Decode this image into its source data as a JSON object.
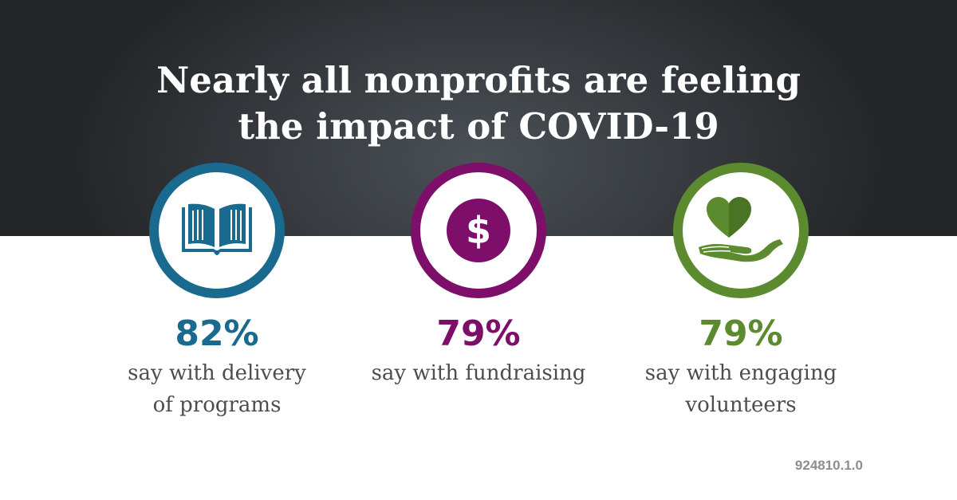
{
  "header": {
    "title_line1": "Nearly all nonprofits are feeling",
    "title_line2": "the impact of COVID-19"
  },
  "stats": [
    {
      "value": "82%",
      "desc_line1": "say with delivery",
      "desc_line2": "of programs",
      "icon": "book-icon",
      "color": "#1a6a8f"
    },
    {
      "value": "79%",
      "desc_line1": "say with fundraising",
      "desc_line2": "",
      "icon": "dollar-icon",
      "color": "#7d0f6b"
    },
    {
      "value": "79%",
      "desc_line1": "say with engaging",
      "desc_line2": "volunteers",
      "icon": "heart-hand-icon",
      "color": "#5b8a2f"
    }
  ],
  "footer": {
    "code": "924810.1.0"
  }
}
